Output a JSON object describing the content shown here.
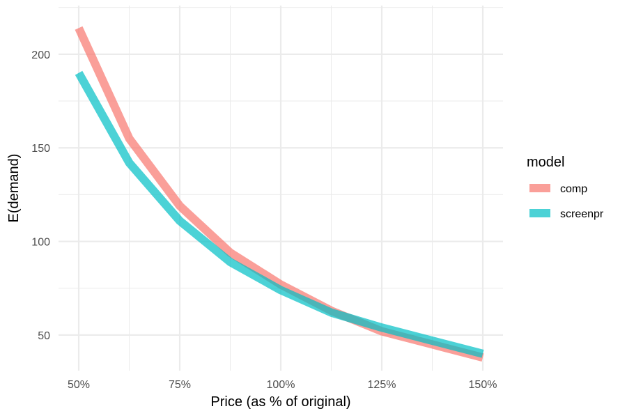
{
  "chart_data": {
    "type": "line",
    "xlabel": "Price (as % of original)",
    "ylabel": "E(demand)",
    "x": [
      50,
      62.5,
      75,
      87.5,
      100,
      112.5,
      125,
      137.5,
      150
    ],
    "x_ticks": [
      50,
      75,
      100,
      125,
      150
    ],
    "x_tick_labels": [
      "50%",
      "75%",
      "100%",
      "125%",
      "150%"
    ],
    "y_ticks": [
      50,
      100,
      150,
      200
    ],
    "y_tick_labels": [
      "50",
      "100",
      "150",
      "200"
    ],
    "xlim": [
      45,
      155
    ],
    "ylim": [
      31,
      226
    ],
    "grid": true,
    "legend": {
      "title": "model",
      "position": "right"
    },
    "series": [
      {
        "name": "comp",
        "color": "#F8766D",
        "values": [
          214,
          155,
          119,
          94,
          77,
          63,
          52,
          45,
          38
        ]
      },
      {
        "name": "screenpr",
        "color": "#00BFC4",
        "values": [
          190,
          142,
          111,
          89,
          74,
          62,
          54,
          47,
          40
        ]
      }
    ]
  }
}
